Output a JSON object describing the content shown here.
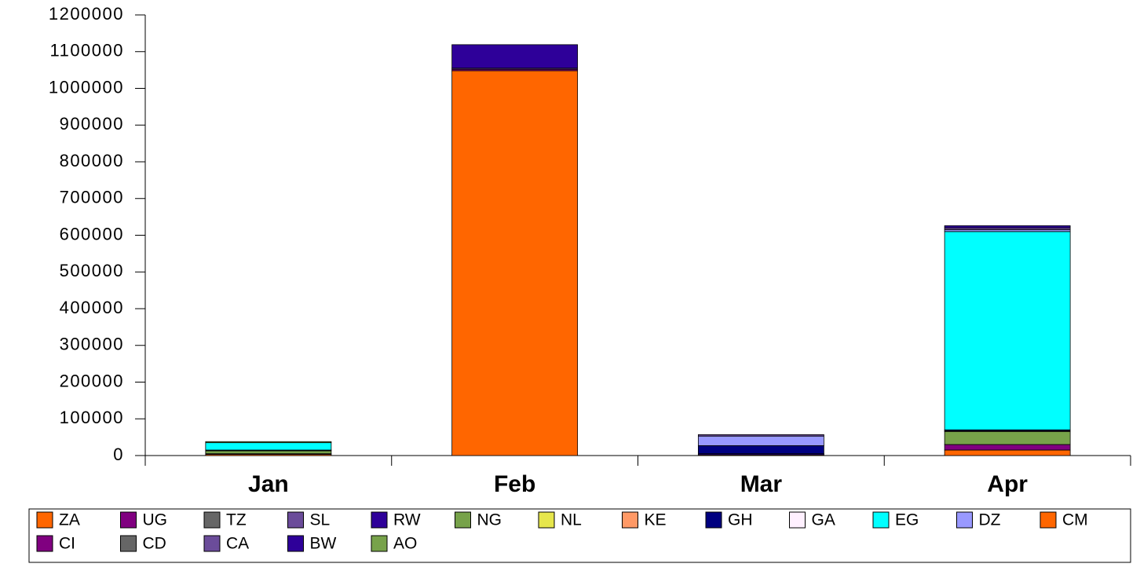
{
  "chart_data": {
    "type": "stacked_bar",
    "categories": [
      "Jan",
      "Feb",
      "Mar",
      "Apr"
    ],
    "series": [
      {
        "name": "ZA",
        "color": "#ff6600",
        "values": [
          3000,
          1048000,
          2000,
          15000
        ]
      },
      {
        "name": "UG",
        "color": "#800080",
        "values": [
          2000,
          4000,
          0,
          15000
        ]
      },
      {
        "name": "TZ",
        "color": "#666666",
        "values": [
          0,
          0,
          0,
          0
        ]
      },
      {
        "name": "SL",
        "color": "#6b4c9a",
        "values": [
          0,
          3000,
          0,
          0
        ]
      },
      {
        "name": "RW",
        "color": "#2e0099",
        "values": [
          0,
          64000,
          3000,
          0
        ]
      },
      {
        "name": "NG",
        "color": "#77a24a",
        "values": [
          8000,
          0,
          0,
          35000
        ]
      },
      {
        "name": "NL",
        "color": "#e6e64c",
        "values": [
          0,
          0,
          0,
          2000
        ]
      },
      {
        "name": "KE",
        "color": "#ff9966",
        "values": [
          0,
          0,
          0,
          0
        ]
      },
      {
        "name": "GH",
        "color": "#000080",
        "values": [
          2000,
          0,
          22000,
          3000
        ]
      },
      {
        "name": "GA",
        "color": "#fff0ff",
        "values": [
          0,
          0,
          0,
          0
        ]
      },
      {
        "name": "EG",
        "color": "#00ffff",
        "values": [
          20000,
          0,
          0,
          540000
        ]
      },
      {
        "name": "DZ",
        "color": "#9999ff",
        "values": [
          0,
          0,
          26000,
          5000
        ]
      },
      {
        "name": "CM",
        "color": "#ff6600",
        "values": [
          0,
          0,
          0,
          0
        ]
      },
      {
        "name": "CI",
        "color": "#800080",
        "values": [
          0,
          0,
          0,
          0
        ]
      },
      {
        "name": "CD",
        "color": "#666666",
        "values": [
          0,
          0,
          0,
          0
        ]
      },
      {
        "name": "CA",
        "color": "#6b4c9a",
        "values": [
          0,
          0,
          4000,
          5000
        ]
      },
      {
        "name": "BW",
        "color": "#2e0099",
        "values": [
          0,
          0,
          0,
          6000
        ]
      },
      {
        "name": "AO",
        "color": "#77a24a",
        "values": [
          3000,
          0,
          0,
          0
        ]
      }
    ],
    "ylim": [
      0,
      1200000
    ],
    "yticks": [
      0,
      100000,
      200000,
      300000,
      400000,
      500000,
      600000,
      700000,
      800000,
      900000,
      1000000,
      1100000,
      1200000
    ],
    "legend": "bottom"
  }
}
